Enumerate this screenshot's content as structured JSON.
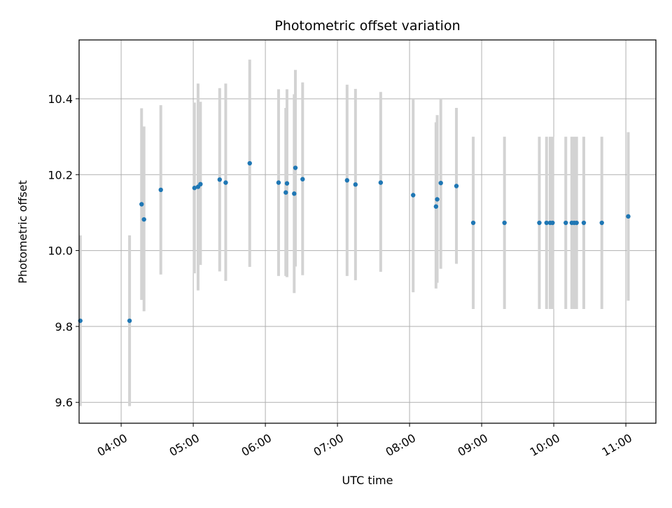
{
  "chart_data": {
    "type": "scatter",
    "title": "Photometric offset variation",
    "xlabel": "UTC time",
    "ylabel": "Photometric offset",
    "x_unit": "hours UTC",
    "xlim": [
      "03:25",
      "11:25"
    ],
    "ylim": [
      9.545,
      10.555
    ],
    "grid": true,
    "colors": {
      "points": "#1f77b4",
      "errorbars": "#d3d3d3",
      "grid": "#b0b0b0"
    },
    "x_ticks": [
      "04:00",
      "05:00",
      "06:00",
      "07:00",
      "08:00",
      "09:00",
      "10:00",
      "11:00"
    ],
    "y_ticks": [
      "9.6",
      "9.8",
      "10.0",
      "10.2",
      "10.4"
    ],
    "points": [
      {
        "x": "03:26",
        "y": 9.815,
        "lo": 9.59,
        "hi": 10.04
      },
      {
        "x": "04:07",
        "y": 9.815,
        "lo": 9.59,
        "hi": 10.04
      },
      {
        "x": "04:17",
        "y": 10.122,
        "lo": 9.87,
        "hi": 10.375
      },
      {
        "x": "04:19",
        "y": 10.082,
        "lo": 9.84,
        "hi": 10.327
      },
      {
        "x": "04:33",
        "y": 10.16,
        "lo": 9.937,
        "hi": 10.383
      },
      {
        "x": "05:01",
        "y": 10.165,
        "lo": 9.94,
        "hi": 10.39
      },
      {
        "x": "05:04",
        "y": 10.168,
        "lo": 9.895,
        "hi": 10.44
      },
      {
        "x": "05:06",
        "y": 10.175,
        "lo": 9.962,
        "hi": 10.392
      },
      {
        "x": "05:22",
        "y": 10.187,
        "lo": 9.945,
        "hi": 10.428
      },
      {
        "x": "05:27",
        "y": 10.179,
        "lo": 9.92,
        "hi": 10.44
      },
      {
        "x": "05:47",
        "y": 10.23,
        "lo": 9.957,
        "hi": 10.503
      },
      {
        "x": "06:11",
        "y": 10.179,
        "lo": 9.933,
        "hi": 10.425
      },
      {
        "x": "06:17",
        "y": 10.153,
        "lo": 9.933,
        "hi": 10.376
      },
      {
        "x": "06:18",
        "y": 10.177,
        "lo": 9.93,
        "hi": 10.425
      },
      {
        "x": "06:24",
        "y": 10.15,
        "lo": 9.888,
        "hi": 10.412
      },
      {
        "x": "06:25",
        "y": 10.218,
        "lo": 9.958,
        "hi": 10.476
      },
      {
        "x": "06:31",
        "y": 10.188,
        "lo": 9.935,
        "hi": 10.443
      },
      {
        "x": "07:08",
        "y": 10.185,
        "lo": 9.933,
        "hi": 10.437
      },
      {
        "x": "07:15",
        "y": 10.174,
        "lo": 9.922,
        "hi": 10.426
      },
      {
        "x": "07:36",
        "y": 10.179,
        "lo": 9.944,
        "hi": 10.418
      },
      {
        "x": "08:03",
        "y": 10.146,
        "lo": 9.89,
        "hi": 10.4
      },
      {
        "x": "08:22",
        "y": 10.116,
        "lo": 9.9,
        "hi": 10.338
      },
      {
        "x": "08:23",
        "y": 10.135,
        "lo": 9.915,
        "hi": 10.357
      },
      {
        "x": "08:26",
        "y": 10.178,
        "lo": 9.952,
        "hi": 10.4
      },
      {
        "x": "08:39",
        "y": 10.17,
        "lo": 9.965,
        "hi": 10.376
      },
      {
        "x": "08:53",
        "y": 10.073,
        "lo": 9.846,
        "hi": 10.3
      },
      {
        "x": "09:19",
        "y": 10.073,
        "lo": 9.846,
        "hi": 10.3
      },
      {
        "x": "09:48",
        "y": 10.073,
        "lo": 9.846,
        "hi": 10.3
      },
      {
        "x": "09:54",
        "y": 10.073,
        "lo": 9.846,
        "hi": 10.3
      },
      {
        "x": "09:57",
        "y": 10.073,
        "lo": 9.846,
        "hi": 10.3
      },
      {
        "x": "09:59",
        "y": 10.073,
        "lo": 9.846,
        "hi": 10.3
      },
      {
        "x": "10:10",
        "y": 10.073,
        "lo": 9.846,
        "hi": 10.3
      },
      {
        "x": "10:15",
        "y": 10.073,
        "lo": 9.846,
        "hi": 10.3
      },
      {
        "x": "10:17",
        "y": 10.073,
        "lo": 9.846,
        "hi": 10.3
      },
      {
        "x": "10:19",
        "y": 10.073,
        "lo": 9.846,
        "hi": 10.3
      },
      {
        "x": "10:25",
        "y": 10.073,
        "lo": 9.846,
        "hi": 10.3
      },
      {
        "x": "10:40",
        "y": 10.073,
        "lo": 9.846,
        "hi": 10.3
      },
      {
        "x": "11:02",
        "y": 10.09,
        "lo": 9.868,
        "hi": 10.312
      }
    ]
  }
}
